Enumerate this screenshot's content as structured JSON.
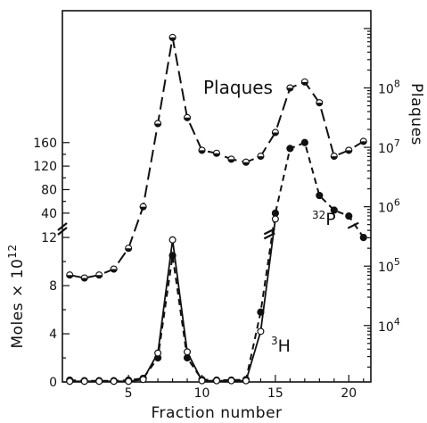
{
  "chart_data": {
    "type": "line",
    "xlabel": "Fraction number",
    "ylabel_left": "Moles × 10",
    "ylabel_left_exponent": "12",
    "ylabel_right": "Plaques",
    "x_ticks": [
      5,
      10,
      15,
      20
    ],
    "xlim": [
      0.5,
      21.5
    ],
    "left_axis_lower": {
      "ticks": [
        0,
        4,
        8,
        12
      ],
      "ylim": [
        0,
        12.6
      ]
    },
    "left_axis_upper": {
      "ticks": [
        40,
        80,
        120,
        160
      ],
      "ylim": [
        20,
        190
      ]
    },
    "right_axis": {
      "scale": "log",
      "ticks": [
        10000,
        100000,
        1000000,
        10000000,
        100000000
      ],
      "tick_labels": [
        {
          "base": "10",
          "exp": "4"
        },
        {
          "base": "10",
          "exp": "5"
        },
        {
          "base": "10",
          "exp": "6"
        },
        {
          "base": "10",
          "exp": "7"
        },
        {
          "base": "10",
          "exp": "8"
        }
      ],
      "ylim_exponent": [
        3.05,
        9.3
      ]
    },
    "series": [
      {
        "name": "Plaques",
        "label": "Plaques",
        "axis": "right",
        "marker": "half-filled",
        "style": "long-dash",
        "x": [
          1,
          2,
          3,
          4,
          5,
          6,
          7,
          8,
          9,
          10,
          11,
          12,
          13,
          14,
          15,
          16,
          17,
          18,
          19,
          20,
          21
        ],
        "y_log10": [
          4.85,
          4.8,
          4.85,
          4.95,
          5.3,
          6.0,
          7.4,
          8.85,
          7.5,
          6.95,
          6.9,
          6.8,
          6.75,
          6.85,
          7.25,
          8.0,
          8.1,
          7.75,
          6.85,
          6.95,
          7.1
        ]
      },
      {
        "name": "32P",
        "label_base": "P",
        "label_sup": "32",
        "axis": "left",
        "marker": "filled",
        "style": "short-dash",
        "x": [
          1,
          2,
          3,
          4,
          5,
          6,
          7,
          8,
          9,
          10,
          11,
          12,
          13,
          14,
          15,
          16,
          17,
          18,
          19,
          20,
          21
        ],
        "y": [
          0.15,
          0.1,
          0.1,
          0.1,
          0.15,
          0.3,
          2.0,
          10.5,
          2.0,
          0.2,
          0.15,
          0.15,
          0.2,
          5.8,
          40,
          150,
          160,
          70,
          45,
          35,
          12
        ]
      },
      {
        "name": "3H",
        "label_base": "H",
        "label_sup": "3",
        "axis": "left",
        "marker": "open",
        "style": "solid",
        "x": [
          1,
          2,
          3,
          4,
          5,
          6,
          7,
          8,
          9,
          10,
          11,
          12,
          13,
          14,
          15
        ],
        "y": [
          0.05,
          0.05,
          0.05,
          0.05,
          0.05,
          0.2,
          2.4,
          11.8,
          2.5,
          0.1,
          0.1,
          0.1,
          0.1,
          4.2,
          30
        ]
      }
    ]
  }
}
